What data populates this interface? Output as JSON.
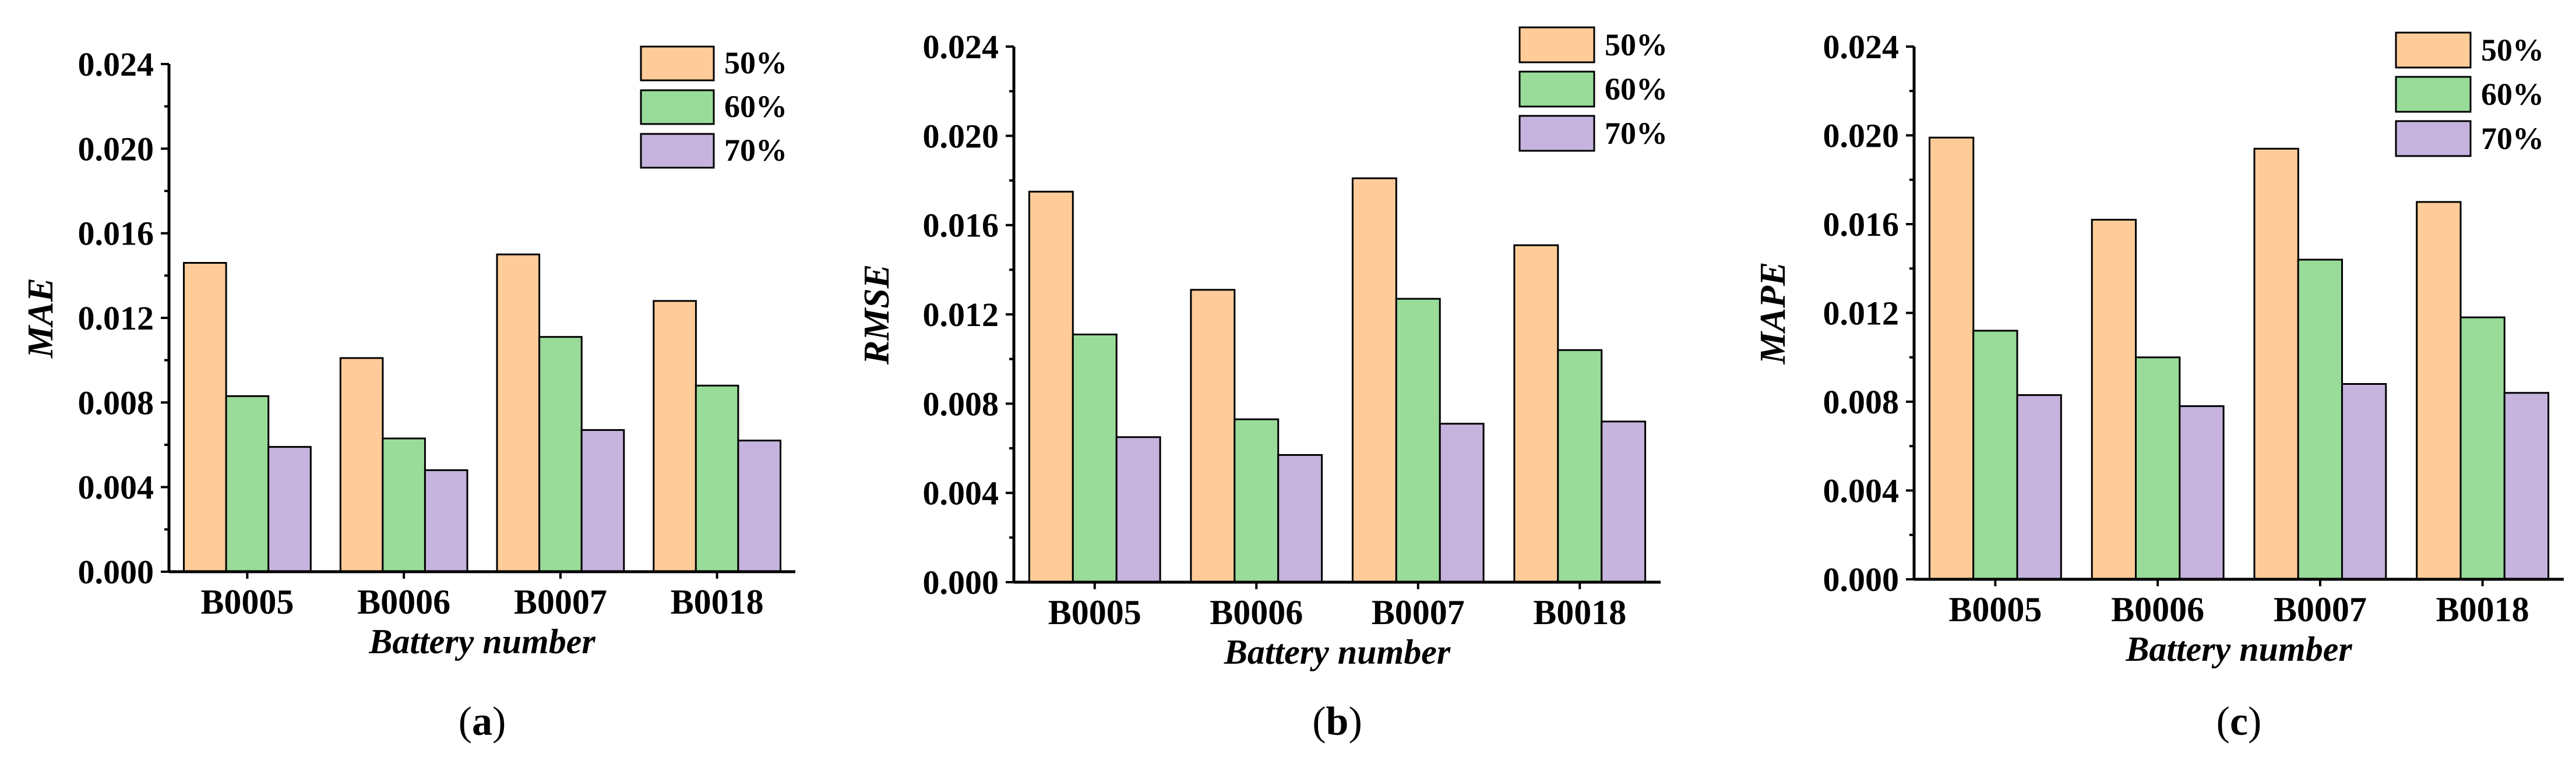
{
  "chart_data": [
    {
      "type": "bar",
      "panel_label": "a",
      "title": "",
      "xlabel": "Battery number",
      "ylabel": "MAE",
      "ylim": [
        0,
        0.024
      ],
      "yticks": [
        "0.000",
        "0.004",
        "0.008",
        "0.012",
        "0.016",
        "0.020",
        "0.024"
      ],
      "categories": [
        "B0005",
        "B0006",
        "B0007",
        "B0018"
      ],
      "series": [
        {
          "name": "50%",
          "color": "#FFCC99",
          "values": [
            0.0146,
            0.0101,
            0.015,
            0.0128
          ]
        },
        {
          "name": "60%",
          "color": "#99DB99",
          "values": [
            0.0083,
            0.0063,
            0.0111,
            0.0088
          ]
        },
        {
          "name": "70%",
          "color": "#C6B3DE",
          "values": [
            0.0059,
            0.0048,
            0.0067,
            0.0062
          ]
        }
      ],
      "legend_position": "top-right"
    },
    {
      "type": "bar",
      "panel_label": "b",
      "title": "",
      "xlabel": "Battery number",
      "ylabel": "RMSE",
      "ylim": [
        0,
        0.024
      ],
      "yticks": [
        "0.000",
        "0.004",
        "0.008",
        "0.012",
        "0.016",
        "0.020",
        "0.024"
      ],
      "categories": [
        "B0005",
        "B0006",
        "B0007",
        "B0018"
      ],
      "series": [
        {
          "name": "50%",
          "color": "#FFCC99",
          "values": [
            0.0175,
            0.0131,
            0.0181,
            0.0151
          ]
        },
        {
          "name": "60%",
          "color": "#99DB99",
          "values": [
            0.0111,
            0.0073,
            0.0127,
            0.0104
          ]
        },
        {
          "name": "70%",
          "color": "#C6B3DE",
          "values": [
            0.0065,
            0.0057,
            0.0071,
            0.0072
          ]
        }
      ],
      "legend_position": "top-right"
    },
    {
      "type": "bar",
      "panel_label": "c",
      "title": "",
      "xlabel": "Battery number",
      "ylabel": "MAPE",
      "ylim": [
        0,
        0.024
      ],
      "yticks": [
        "0.000",
        "0.004",
        "0.008",
        "0.012",
        "0.016",
        "0.020",
        "0.024"
      ],
      "categories": [
        "B0005",
        "B0006",
        "B0007",
        "B0018"
      ],
      "series": [
        {
          "name": "50%",
          "color": "#FFCC99",
          "values": [
            0.0199,
            0.0162,
            0.0194,
            0.017
          ]
        },
        {
          "name": "60%",
          "color": "#99DB99",
          "values": [
            0.0112,
            0.01,
            0.0144,
            0.0118
          ]
        },
        {
          "name": "70%",
          "color": "#C6B3DE",
          "values": [
            0.0083,
            0.0078,
            0.0088,
            0.0084
          ]
        }
      ],
      "legend_position": "top-right"
    }
  ]
}
